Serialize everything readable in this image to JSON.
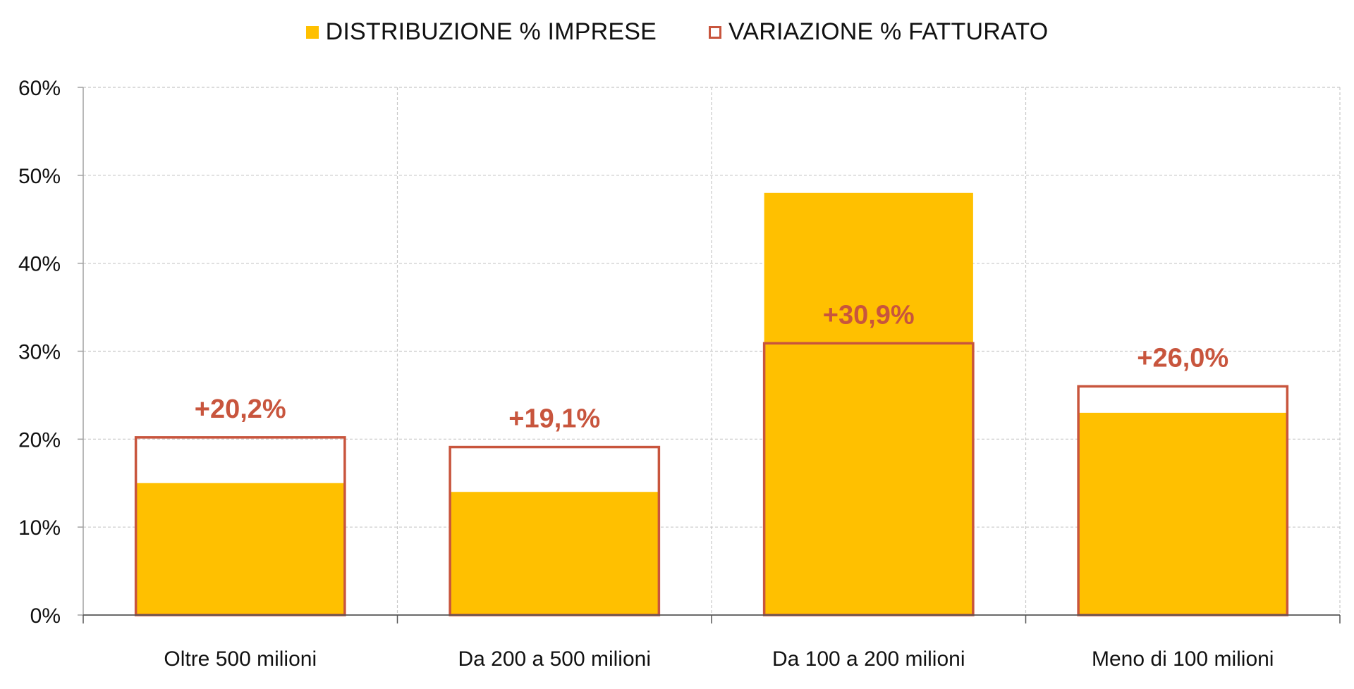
{
  "chart_data": {
    "type": "bar",
    "categories": [
      "Oltre 500 milioni",
      "Da 200 a 500 milioni",
      "Da 100 a 200 milioni",
      "Meno di 100 milioni"
    ],
    "series": [
      {
        "name": "DISTRIBUZIONE % IMPRESE",
        "values": [
          15,
          14,
          48,
          23
        ],
        "style": "filled",
        "color": "#FFC000"
      },
      {
        "name": "VARIAZIONE % FATTURATO",
        "values": [
          20.2,
          19.1,
          30.9,
          26.0
        ],
        "style": "outline",
        "color": "#C8553D",
        "data_labels": [
          "+20,2%",
          "+19,1%",
          "+30,9%",
          "+26,0%"
        ]
      }
    ],
    "y_ticks": [
      "0%",
      "10%",
      "20%",
      "30%",
      "40%",
      "50%",
      "60%"
    ],
    "ylim": [
      0,
      60
    ],
    "grid": true,
    "legend_position": "top-center",
    "title": "",
    "xlabel": "",
    "ylabel": ""
  }
}
